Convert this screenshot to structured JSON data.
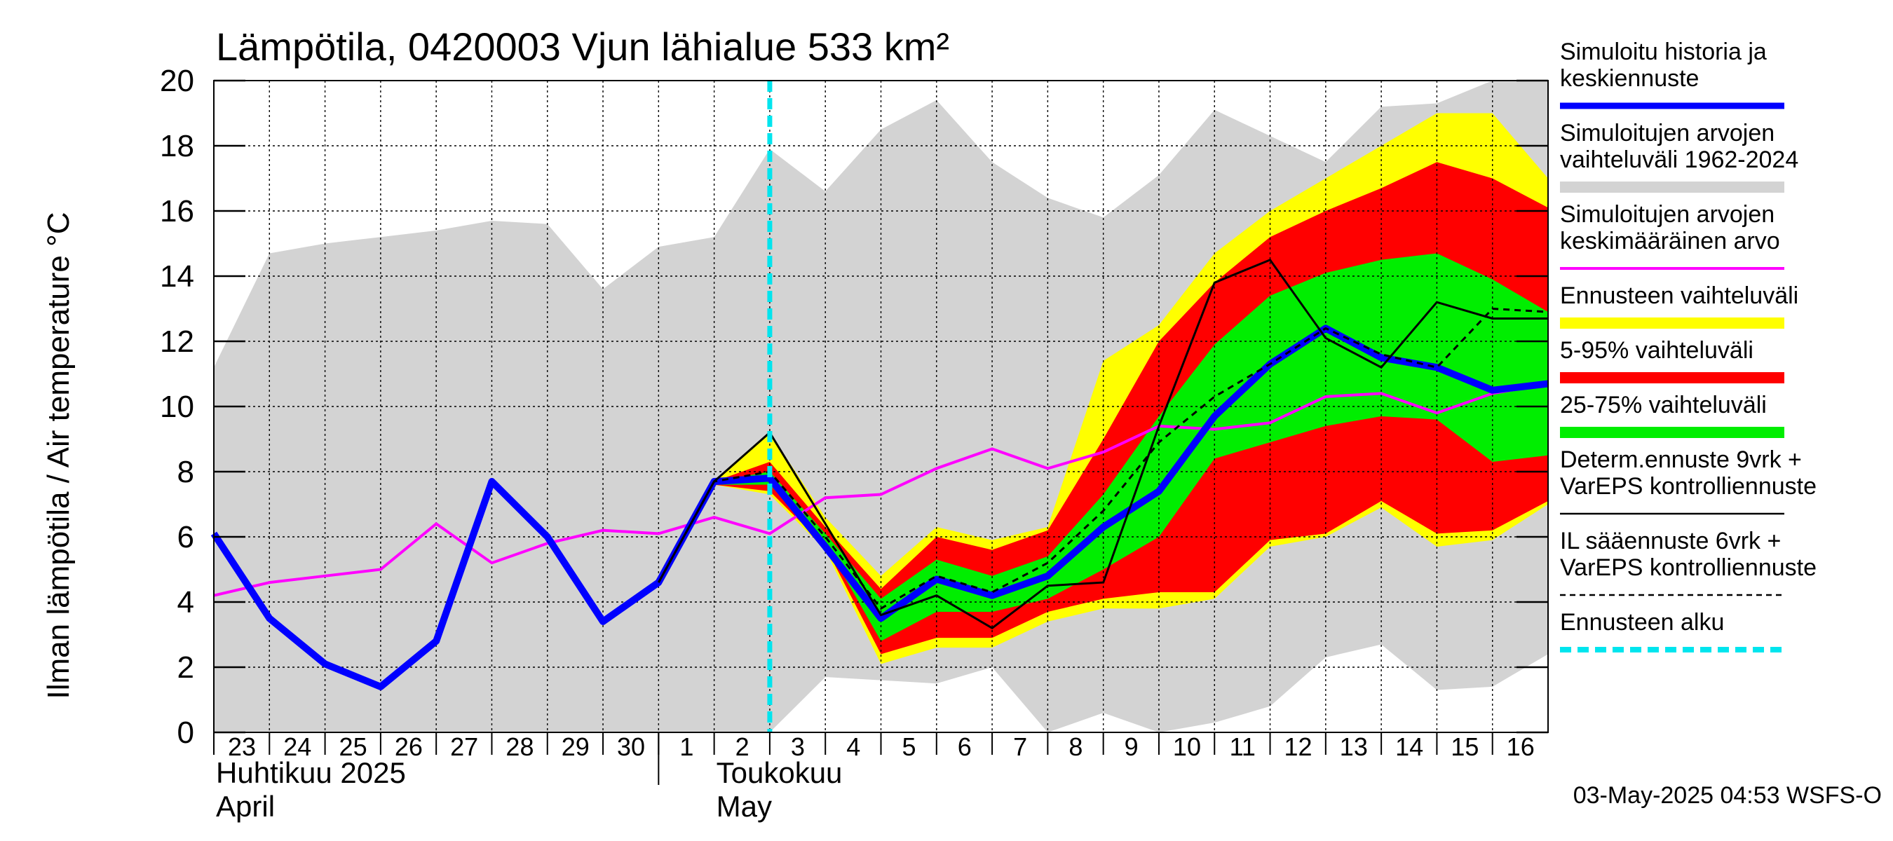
{
  "chart_data": {
    "type": "area",
    "title": "Lämpötila, 0420003 Vjun lähialue 533 km²",
    "ylabel": "Ilman lämpötila / Air temperature   °C",
    "ylim": [
      0,
      20
    ],
    "yticks": [
      0,
      2,
      4,
      6,
      8,
      10,
      12,
      14,
      16,
      18,
      20
    ],
    "grid": true,
    "legend_position": "right",
    "x_domain": [
      0,
      24
    ],
    "day_ticks": [
      {
        "label": "23",
        "x": 0
      },
      {
        "label": "24",
        "x": 1
      },
      {
        "label": "25",
        "x": 2
      },
      {
        "label": "26",
        "x": 3
      },
      {
        "label": "27",
        "x": 4
      },
      {
        "label": "28",
        "x": 5
      },
      {
        "label": "29",
        "x": 6
      },
      {
        "label": "30",
        "x": 7
      },
      {
        "label": "1",
        "x": 8
      },
      {
        "label": "2",
        "x": 9
      },
      {
        "label": "3",
        "x": 10
      },
      {
        "label": "4",
        "x": 11
      },
      {
        "label": "5",
        "x": 12
      },
      {
        "label": "6",
        "x": 13
      },
      {
        "label": "7",
        "x": 14
      },
      {
        "label": "8",
        "x": 15
      },
      {
        "label": "9",
        "x": 16
      },
      {
        "label": "10",
        "x": 17
      },
      {
        "label": "11",
        "x": 18
      },
      {
        "label": "12",
        "x": 19
      },
      {
        "label": "13",
        "x": 20
      },
      {
        "label": "14",
        "x": 21
      },
      {
        "label": "15",
        "x": 22
      },
      {
        "label": "16",
        "x": 23
      }
    ],
    "month_labels": [
      {
        "line1": "Huhtikuu  2025",
        "line2": "April",
        "x": 0
      },
      {
        "line1": "Toukokuu",
        "line2": "May",
        "x": 9
      }
    ],
    "month_separator_x": 8,
    "forecast_start_x": 10,
    "timestamp": "03-May-2025 04:53 WSFS-O",
    "series": {
      "history_range": {
        "x": [
          0,
          1,
          2,
          3,
          4,
          5,
          6,
          7,
          8,
          9,
          10,
          11,
          12,
          13,
          14,
          15,
          16,
          17,
          18,
          19,
          20,
          21,
          22,
          23,
          24
        ],
        "upper": [
          11.2,
          14.7,
          15.0,
          15.2,
          15.4,
          15.7,
          15.6,
          13.6,
          14.9,
          15.2,
          17.9,
          16.6,
          18.5,
          19.4,
          17.5,
          16.4,
          15.8,
          17.1,
          19.1,
          18.3,
          17.5,
          19.2,
          19.3,
          20,
          20
        ],
        "lower": [
          0,
          0,
          0,
          0,
          0,
          0,
          0,
          0,
          0,
          0,
          0,
          1.7,
          1.6,
          1.5,
          2.0,
          0,
          0.6,
          0,
          0.3,
          0.8,
          2.3,
          2.7,
          1.3,
          1.4,
          2.4
        ]
      },
      "ensemble_range": {
        "x": [
          9,
          10,
          11,
          12,
          13,
          14,
          15,
          16,
          17,
          18,
          19,
          20,
          21,
          22,
          23,
          24
        ],
        "upper": [
          7.7,
          9.2,
          6.6,
          4.8,
          6.3,
          5.9,
          6.3,
          11.4,
          12.5,
          14.7,
          16.0,
          17.0,
          18.0,
          19.0,
          19.0,
          17.0
        ],
        "lower": [
          7.6,
          7.3,
          5.6,
          2.1,
          2.6,
          2.6,
          3.4,
          3.8,
          3.8,
          4.1,
          5.7,
          6.0,
          6.9,
          5.7,
          5.9,
          7.0
        ]
      },
      "p5_95_range": {
        "x": [
          9,
          10,
          11,
          12,
          13,
          14,
          15,
          16,
          17,
          18,
          19,
          20,
          21,
          22,
          23,
          24
        ],
        "upper": [
          7.7,
          8.3,
          6.3,
          4.4,
          6.0,
          5.6,
          6.2,
          9.0,
          12.0,
          13.8,
          15.2,
          16.0,
          16.7,
          17.5,
          17.0,
          16.1
        ],
        "lower": [
          7.6,
          7.4,
          5.7,
          2.4,
          2.9,
          2.9,
          3.7,
          4.1,
          4.3,
          4.3,
          5.9,
          6.1,
          7.1,
          6.1,
          6.2,
          7.1
        ]
      },
      "p25_75_range": {
        "x": [
          9,
          10,
          11,
          12,
          13,
          14,
          15,
          16,
          17,
          18,
          19,
          20,
          21,
          22,
          23,
          24
        ],
        "upper": [
          7.7,
          8.0,
          6.1,
          4.1,
          5.3,
          4.8,
          5.4,
          7.3,
          9.7,
          11.9,
          13.4,
          14.1,
          14.5,
          14.7,
          13.9,
          12.9
        ],
        "lower": [
          7.6,
          7.6,
          5.8,
          2.8,
          3.7,
          3.7,
          4.1,
          5.0,
          6.0,
          8.4,
          8.9,
          9.4,
          9.7,
          9.6,
          8.3,
          8.5
        ]
      },
      "mean": {
        "name": "Simuloitujen arvojen keskimääräinen arvo",
        "x": [
          0,
          1,
          2,
          3,
          4,
          5,
          6,
          7,
          8,
          9,
          10,
          11,
          12,
          13,
          14,
          15,
          16,
          17,
          18,
          19,
          20,
          21,
          22,
          23,
          24
        ],
        "values": [
          4.2,
          4.6,
          4.8,
          5.0,
          6.4,
          5.2,
          5.8,
          6.2,
          6.1,
          6.6,
          6.1,
          7.2,
          7.3,
          8.1,
          8.7,
          8.1,
          8.6,
          9.4,
          9.3,
          9.5,
          10.3,
          10.4,
          9.8,
          10.4,
          10.7
        ]
      },
      "determ_forecast": {
        "name": "Determ.ennuste 9vrk + VarEPS kontrolliennuste",
        "x": [
          8,
          9,
          10,
          11,
          12,
          13,
          14,
          15,
          16,
          17,
          18,
          19,
          20,
          21,
          22,
          23,
          24
        ],
        "values": [
          4.6,
          7.7,
          9.2,
          6.4,
          3.6,
          4.2,
          3.2,
          4.5,
          4.6,
          9.4,
          13.8,
          14.5,
          12.1,
          11.2,
          13.2,
          12.7,
          12.7
        ]
      },
      "il_forecast": {
        "name": "IL sääennuste 6vrk + VarEPS kontrolliennuste",
        "x": [
          8,
          9,
          10,
          11,
          12,
          13,
          14,
          15,
          16,
          17,
          18,
          19,
          20,
          21,
          22,
          23,
          24
        ],
        "values": [
          4.6,
          7.7,
          8.0,
          6.0,
          3.8,
          4.8,
          4.3,
          5.2,
          6.8,
          8.9,
          10.3,
          11.3,
          12.4,
          11.6,
          11.2,
          13.0,
          12.9
        ]
      },
      "median_sim": {
        "name": "Simuloitu historia ja keskiennuste",
        "x": [
          0,
          1,
          2,
          3,
          4,
          5,
          6,
          7,
          8,
          9,
          10,
          11,
          12,
          13,
          14,
          15,
          16,
          17,
          18,
          19,
          20,
          21,
          22,
          23,
          24
        ],
        "values": [
          6.1,
          3.5,
          2.1,
          1.4,
          2.8,
          7.7,
          6.0,
          3.4,
          4.6,
          7.7,
          7.8,
          5.7,
          3.5,
          4.7,
          4.2,
          4.8,
          6.3,
          7.4,
          9.7,
          11.3,
          12.4,
          11.5,
          11.2,
          10.5,
          10.7
        ]
      }
    },
    "legend": [
      {
        "text_lines": [
          "Simuloitu historia ja",
          "keskiennuste"
        ],
        "color": "#0000ff",
        "style": "thick"
      },
      {
        "text_lines": [
          "Simuloitujen arvojen",
          "vaihteluväli 1962-2024"
        ],
        "color": "#d3d3d3",
        "style": "band"
      },
      {
        "text_lines": [
          "Simuloitujen arvojen",
          "keskimääräinen arvo"
        ],
        "color": "#ff00ff",
        "style": "line"
      },
      {
        "text_lines": [
          "Ennusteen vaihteluväli"
        ],
        "color": "#ffff00",
        "style": "band"
      },
      {
        "text_lines": [
          "5-95% vaihteluväli"
        ],
        "color": "#ff0000",
        "style": "band"
      },
      {
        "text_lines": [
          "25-75% vaihteluväli"
        ],
        "color": "#00ee00",
        "style": "band"
      },
      {
        "text_lines": [
          "Determ.ennuste 9vrk +",
          "VarEPS kontrolliennuste"
        ],
        "color": "#000000",
        "style": "thin"
      },
      {
        "text_lines": [
          "IL sääennuste 6vrk  +",
          "  VarEPS kontrolliennuste"
        ],
        "color": "#000000",
        "style": "dashed"
      },
      {
        "text_lines": [
          "Ennusteen alku"
        ],
        "color": "#00e5ee",
        "style": "cyan-dashed"
      }
    ],
    "colors": {
      "history_range": "#d3d3d3",
      "ensemble_range": "#ffff00",
      "p5_95_range": "#ff0000",
      "p25_75_range": "#00ee00",
      "mean": "#ff00ff",
      "median_sim": "#0000ff",
      "forecast_line": "#000000",
      "forecast_start": "#00e5ee",
      "grid": "#000000"
    }
  }
}
